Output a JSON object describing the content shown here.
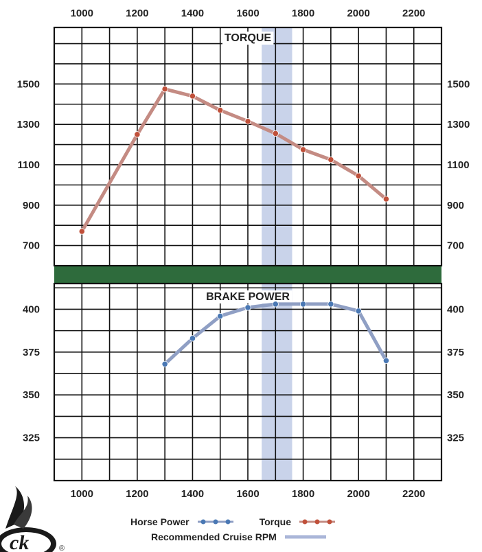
{
  "colors": {
    "grid": "#111111",
    "torque_line": "#c48b83",
    "torque_marker": "#c0503a",
    "hp_line": "#8f9fc4",
    "hp_marker": "#4a78b4",
    "cruise_band": "#c9d3ea",
    "divider": "#2e6b3c"
  },
  "legend": {
    "horse_power": "Horse Power",
    "torque": "Torque",
    "cruise": "Recommended Cruise RPM"
  },
  "logo": {
    "text": "ck",
    "registered": "®"
  },
  "chart_data": [
    {
      "type": "line",
      "title": "TORQUE",
      "x_ticks": [
        1000,
        1200,
        1400,
        1600,
        1800,
        2000,
        2200
      ],
      "y_ticks": [
        700,
        900,
        1100,
        1300,
        1500
      ],
      "xlim": [
        900,
        2300
      ],
      "ylim": [
        600,
        1780
      ],
      "grid": true,
      "series": [
        {
          "name": "Torque",
          "x": [
            1000,
            1200,
            1300,
            1400,
            1500,
            1600,
            1700,
            1800,
            1900,
            2000,
            2100
          ],
          "y": [
            770,
            1250,
            1475,
            1440,
            1370,
            1315,
            1255,
            1175,
            1125,
            1045,
            930
          ]
        }
      ],
      "highlight_band": {
        "label": "Recommended Cruise RPM",
        "x": [
          1650,
          1760
        ]
      }
    },
    {
      "type": "line",
      "title": "BRAKE POWER",
      "x_ticks": [
        1000,
        1200,
        1400,
        1600,
        1800,
        2000,
        2200
      ],
      "y_ticks": [
        325,
        350,
        375,
        400
      ],
      "xlim": [
        900,
        2300
      ],
      "ylim": [
        300,
        415
      ],
      "grid": true,
      "series": [
        {
          "name": "Horse Power",
          "x": [
            1300,
            1400,
            1500,
            1600,
            1700,
            1800,
            1900,
            2000,
            2100
          ],
          "y": [
            368,
            383,
            396,
            401,
            403,
            403,
            403,
            399,
            370
          ]
        }
      ],
      "highlight_band": {
        "label": "Recommended Cruise RPM",
        "x": [
          1650,
          1760
        ]
      }
    }
  ]
}
